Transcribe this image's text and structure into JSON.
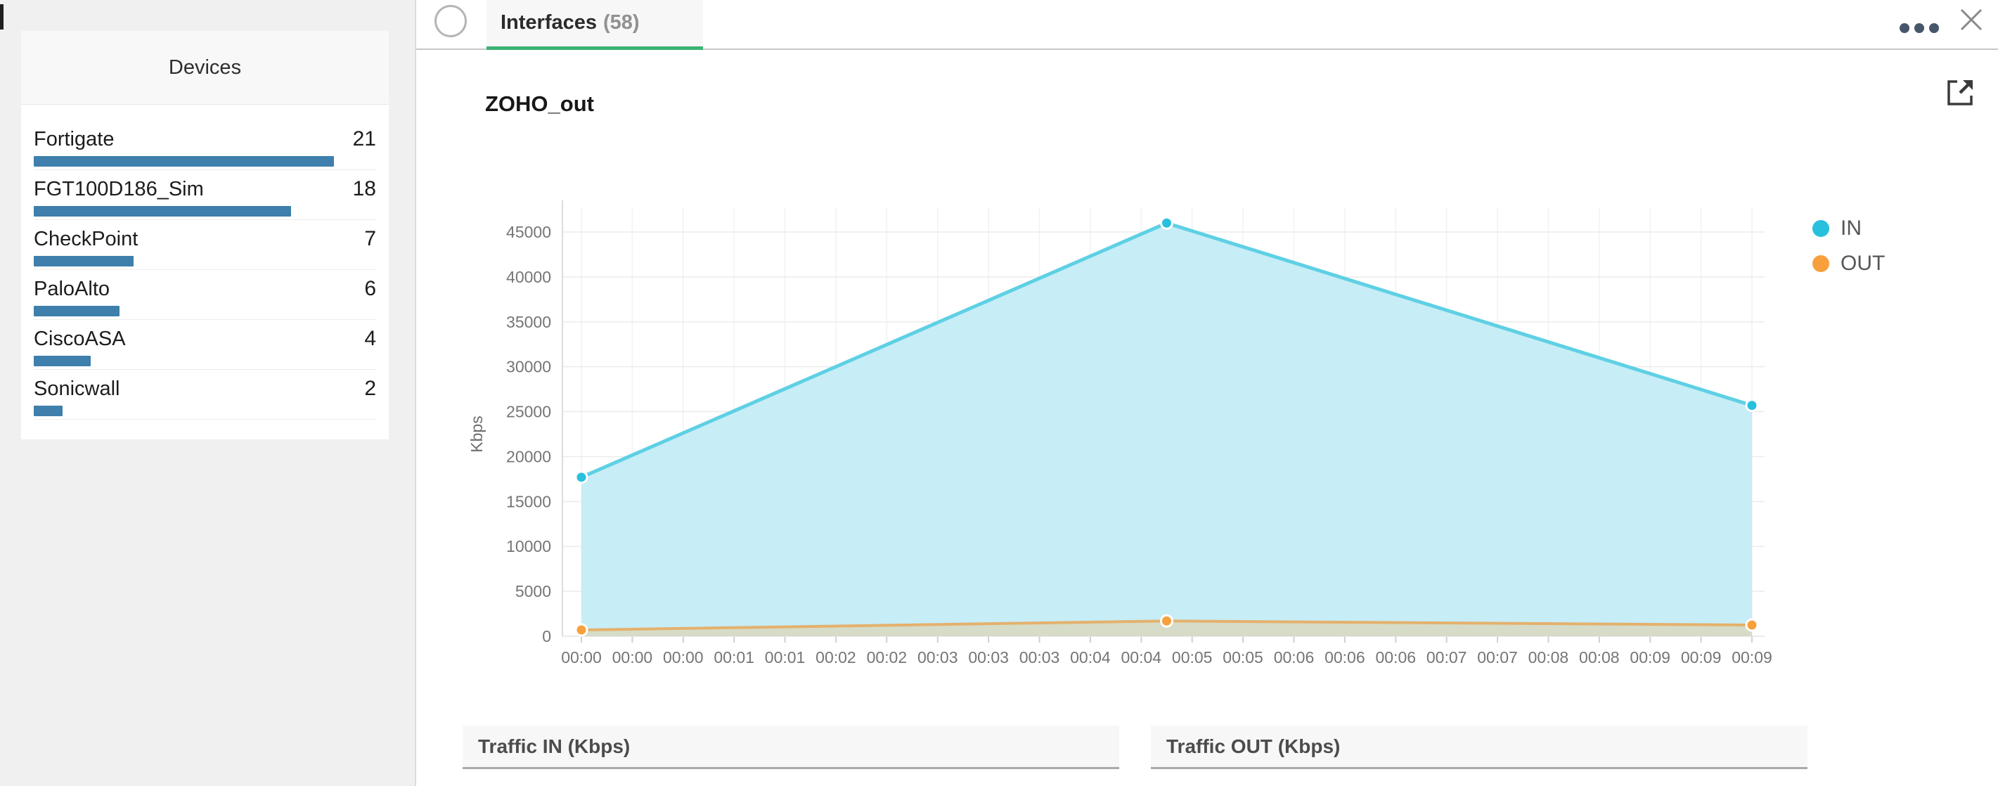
{
  "sidebar": {
    "title": "Devices",
    "bar_color": "#3e7fac",
    "max_count": 21,
    "devices": [
      {
        "name": "Fortigate",
        "count": 21
      },
      {
        "name": "FGT100D186_Sim",
        "count": 18
      },
      {
        "name": "CheckPoint",
        "count": 7
      },
      {
        "name": "PaloAlto",
        "count": 6
      },
      {
        "name": "CiscoASA",
        "count": 4
      },
      {
        "name": "Sonicwall",
        "count": 2
      }
    ]
  },
  "topbar": {
    "tab_label": "Interfaces",
    "tab_count": "(58)",
    "tab_accent_color": "#3bb273",
    "icons": [
      "ellipsis-icon",
      "close-icon"
    ]
  },
  "chart_card": {
    "title": "ZOHO_out",
    "open_icon": "external-link-icon"
  },
  "chart_data": {
    "type": "area",
    "title": "ZOHO_out",
    "xlabel": "",
    "ylabel": "Kbps",
    "ylim": [
      0,
      45000
    ],
    "ytick_step": 5000,
    "grid": true,
    "legend_position": "right",
    "x_labels": [
      "00:00",
      "00:00",
      "00:00",
      "00:01",
      "00:01",
      "00:02",
      "00:02",
      "00:03",
      "00:03",
      "00:03",
      "00:04",
      "00:04",
      "00:05",
      "00:05",
      "00:06",
      "00:06",
      "00:06",
      "00:07",
      "00:07",
      "00:08",
      "00:08",
      "00:09",
      "00:09",
      "00:09"
    ],
    "series": [
      {
        "name": "IN",
        "marker_color": "#29c0de",
        "line_color": "#5ed0e4",
        "fill_color": "#c7edf7",
        "points": [
          {
            "x_frac": 0.0,
            "value": 17700
          },
          {
            "x_frac": 0.5,
            "value": 46000
          },
          {
            "x_frac": 1.0,
            "value": 25700
          }
        ]
      },
      {
        "name": "OUT",
        "marker_color": "#f7a03c",
        "line_color": "#e4b16d",
        "fill_color": "#d6dcc7",
        "points": [
          {
            "x_frac": 0.0,
            "value": 700
          },
          {
            "x_frac": 0.5,
            "value": 1700
          },
          {
            "x_frac": 1.0,
            "value": 1250
          }
        ]
      }
    ]
  },
  "panels": [
    {
      "title": "Traffic IN (Kbps)"
    },
    {
      "title": "Traffic OUT (Kbps)"
    }
  ]
}
